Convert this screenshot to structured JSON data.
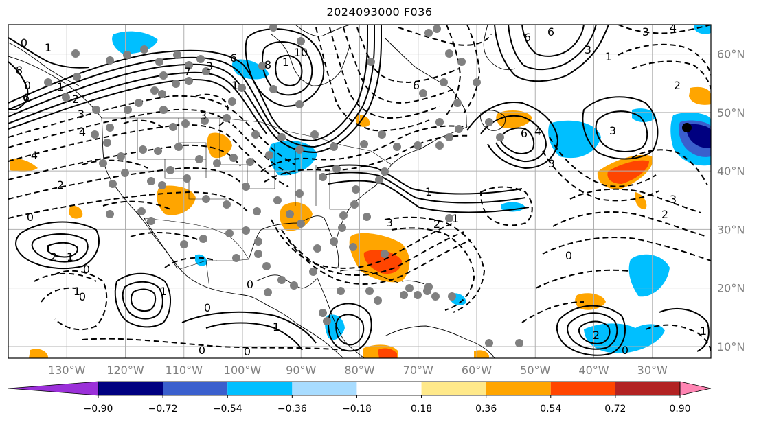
{
  "title": "2024093000 F036",
  "map": {
    "lon_labels": [
      "130°W",
      "120°W",
      "110°W",
      "100°W",
      "90°W",
      "80°W",
      "70°W",
      "60°W",
      "50°W",
      "40°W",
      "30°W"
    ],
    "lat_labels": [
      "60°N",
      "50°N",
      "40°N",
      "30°N",
      "20°N",
      "10°N"
    ],
    "lon_values": [
      -130,
      -120,
      -110,
      -100,
      -90,
      -80,
      -70,
      -60,
      -50,
      -40,
      -30
    ],
    "lat_values": [
      60,
      50,
      40,
      30,
      20,
      10
    ],
    "lon_range": [
      -140,
      -20
    ],
    "lat_range": [
      8,
      65
    ],
    "grid": true,
    "contour_labels": [
      "0",
      "1",
      "2",
      "3",
      "4",
      "6",
      "8",
      "10",
      "-1",
      "-2",
      "-3",
      "-4",
      "-6"
    ]
  },
  "colorbar": {
    "ticks": [
      "−0.90",
      "−0.72",
      "−0.54",
      "−0.36",
      "−0.18",
      "0.18",
      "0.36",
      "0.54",
      "0.72",
      "0.90"
    ],
    "colors": [
      "#9b30d9",
      "#000080",
      "#3a5fcd",
      "#00bfff",
      "#a8dcff",
      "#ffffff",
      "#ffe98a",
      "#ffa500",
      "#ff4500",
      "#b22222",
      "#ff85b3"
    ],
    "extend": "both"
  },
  "colors": {
    "positive_strong": "#ff4500",
    "positive": "#ffa500",
    "negative": "#00bfff",
    "negative_strong": "#3a5fcd",
    "station_dots": "#808080",
    "grid": "#b0b0b0"
  }
}
